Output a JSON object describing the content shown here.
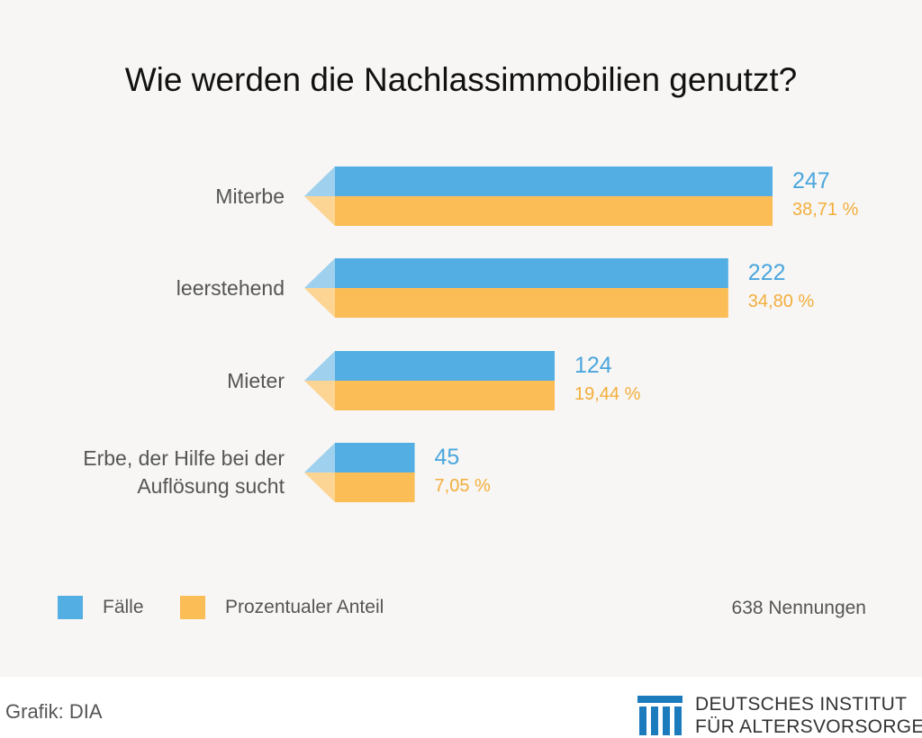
{
  "chart_data": {
    "type": "bar",
    "orientation": "horizontal",
    "title": "Wie werden die Nachlassimmobilien genutzt?",
    "categories": [
      "Miterbe",
      "leerstehend",
      "Mieter",
      "Erbe, der Hilfe bei der\nAuflösung sucht"
    ],
    "series": [
      {
        "name": "Fälle",
        "values": [
          247,
          222,
          124,
          45
        ],
        "labels": [
          "247",
          "222",
          "124",
          "45"
        ],
        "color": "#52aee3"
      },
      {
        "name": "Prozentualer Anteil",
        "values": [
          38.71,
          34.8,
          19.44,
          7.05
        ],
        "labels": [
          "38,71 %",
          "34,80 %",
          "19,44 %",
          "7,05 %"
        ],
        "color": "#fbbd56"
      }
    ],
    "total_note": "638 Nennungen",
    "legend_position": "bottom",
    "grid": false
  },
  "footer": {
    "credit": "Grafik: DIA",
    "brand_line1": "DEUTSCHES INSTITUT",
    "brand_line2": "FÜR ALTERSVORSORGE",
    "brand_color": "#1c7bbd",
    "logo_icon": "dia-logo-icon"
  }
}
